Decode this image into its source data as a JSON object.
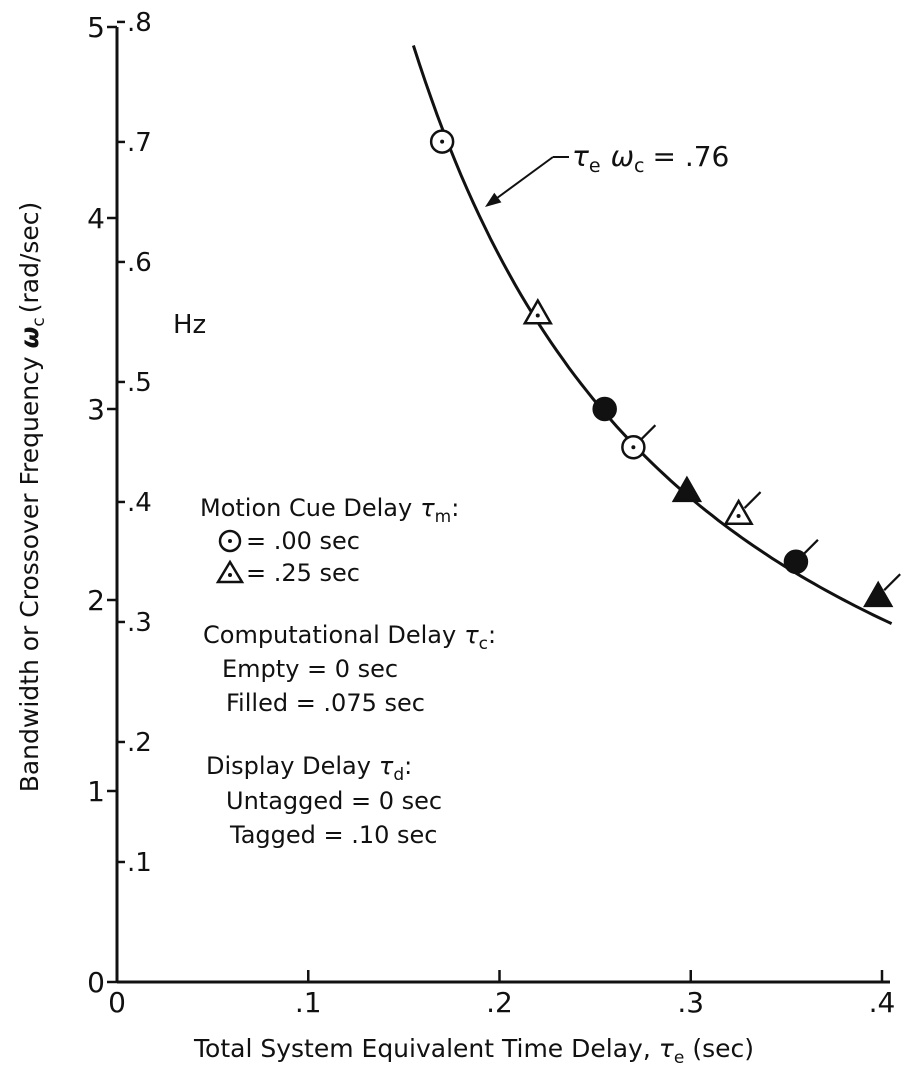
{
  "chart_data": {
    "type": "scatter",
    "xlabel_text": "Total System Equivalent Time Delay,",
    "xlabel_symbol": "τ",
    "xlabel_sub": "e",
    "xlabel_unit": "(sec)",
    "ylabel_text": "Bandwidth or Crossover Frequency",
    "ylabel_symbol": "ω",
    "ylabel_sub": "c",
    "ylabel_unit": "(rad/sec)",
    "xlim": [
      0,
      0.4
    ],
    "ylim": [
      0,
      5
    ],
    "x_ticks": [
      {
        "value": 0,
        "label": "0"
      },
      {
        "value": 0.1,
        "label": ".1"
      },
      {
        "value": 0.2,
        "label": ".2"
      },
      {
        "value": 0.3,
        "label": ".3"
      },
      {
        "value": 0.4,
        "label": ".4"
      }
    ],
    "y_ticks": [
      {
        "value": 0,
        "label": "0"
      },
      {
        "value": 1,
        "label": "1"
      },
      {
        "value": 2,
        "label": "2"
      },
      {
        "value": 3,
        "label": "3"
      },
      {
        "value": 4,
        "label": "4"
      },
      {
        "value": 5,
        "label": "5"
      }
    ],
    "hz_axis": {
      "unit_label": "Hz",
      "ticks": [
        {
          "value": 0.1,
          "label": ".1"
        },
        {
          "value": 0.2,
          "label": ".2"
        },
        {
          "value": 0.3,
          "label": ".3"
        },
        {
          "value": 0.4,
          "label": ".4"
        },
        {
          "value": 0.5,
          "label": ".5"
        },
        {
          "value": 0.6,
          "label": ".6"
        },
        {
          "value": 0.7,
          "label": ".7"
        },
        {
          "value": 0.8,
          "label": ".8"
        }
      ]
    },
    "curve": {
      "equation_constant": 0.76,
      "label_tau": "τ",
      "label_tau_sub": "e",
      "label_omega": "ω",
      "label_omega_sub": "c",
      "label_value": "= .76",
      "x_range": [
        0.155,
        0.405
      ]
    },
    "points": [
      {
        "x": 0.17,
        "y": 4.4,
        "marker": "circle",
        "filled": false,
        "tagged": false
      },
      {
        "x": 0.22,
        "y": 3.5,
        "marker": "triangle",
        "filled": false,
        "tagged": false
      },
      {
        "x": 0.255,
        "y": 3.0,
        "marker": "circle",
        "filled": true,
        "tagged": false
      },
      {
        "x": 0.27,
        "y": 2.8,
        "marker": "circle",
        "filled": false,
        "tagged": true
      },
      {
        "x": 0.298,
        "y": 2.57,
        "marker": "triangle",
        "filled": true,
        "tagged": false
      },
      {
        "x": 0.325,
        "y": 2.45,
        "marker": "triangle",
        "filled": false,
        "tagged": true
      },
      {
        "x": 0.355,
        "y": 2.2,
        "marker": "circle",
        "filled": true,
        "tagged": true
      },
      {
        "x": 0.398,
        "y": 2.02,
        "marker": "triangle",
        "filled": true,
        "tagged": true
      }
    ],
    "legend": {
      "motion_title": "Motion Cue Delay",
      "motion_symbol": "τ",
      "motion_sub": "m",
      "motion_colon": ":",
      "circle_value": "= .00 sec",
      "triangle_value": "= .25 sec",
      "comp_title": "Computational Delay",
      "comp_symbol": "τ",
      "comp_sub": "c",
      "comp_colon": ":",
      "empty_text": "Empty = 0 sec",
      "filled_text": "Filled = .075 sec",
      "display_title": "Display Delay",
      "display_symbol": "τ",
      "display_sub": "d",
      "display_colon": ":",
      "untagged_text": "Untagged = 0 sec",
      "tagged_text": "Tagged = .10 sec"
    }
  }
}
